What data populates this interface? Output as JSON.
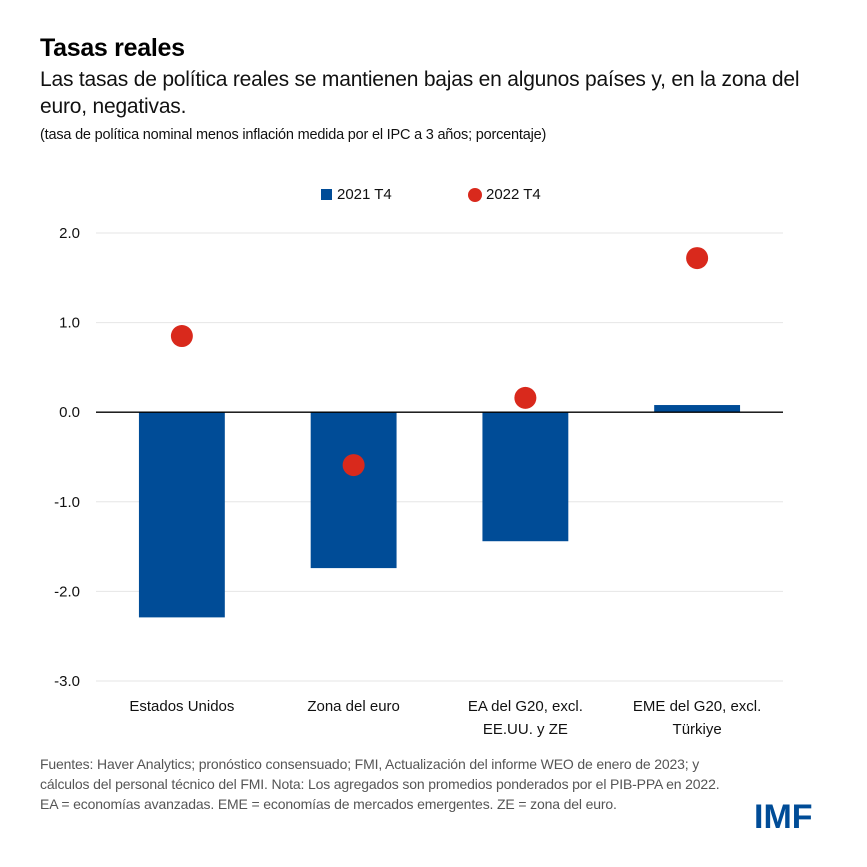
{
  "header": {
    "title": "Tasas reales",
    "subtitle": "Las tasas de política reales se mantienen bajas en algunos países y, en la zona del euro, negativas.",
    "units": "(tasa de política nominal menos inflación medida por el IPC a 3 años; porcentaje)"
  },
  "colors": {
    "bar": "#004C97",
    "dot": "#D9291C",
    "grid": "#E6E6E6",
    "axis": "#000000"
  },
  "chart_data": {
    "type": "bar",
    "title": "Tasas reales",
    "subtitle": "Las tasas de política reales se mantienen bajas en algunos países y, en la zona del euro, negativas.",
    "xlabel": "",
    "ylabel": "(tasa de política nominal menos inflación medida por el IPC a 3 años; porcentaje)",
    "categories": [
      [
        "Estados Unidos"
      ],
      [
        "Zona del euro"
      ],
      [
        "EA del G20, excl.",
        "EE.UU. y ZE"
      ],
      [
        "EME del G20, excl.",
        "Türkiye"
      ]
    ],
    "series": [
      {
        "name": "2021 T4",
        "kind": "bar",
        "values": [
          -2.29,
          -1.74,
          -1.44,
          0.08
        ]
      },
      {
        "name": "2022 T4",
        "kind": "dot",
        "values": [
          0.85,
          -0.59,
          0.16,
          1.72
        ]
      }
    ],
    "ylim": [
      -3.0,
      2.0
    ],
    "yticks": [
      2.0,
      1.0,
      0.0,
      -1.0,
      -2.0,
      -3.0
    ],
    "ytick_labels": [
      "2.0",
      "1.0",
      "0.0",
      "-1.0",
      "-2.0",
      "-3.0"
    ],
    "grid": true,
    "legend_position": "top-center"
  },
  "legend": {
    "items": [
      {
        "label": "2021 T4",
        "marker": "square"
      },
      {
        "label": "2022 T4",
        "marker": "circle"
      }
    ]
  },
  "footer": {
    "note": "Fuentes: Haver Analytics; pronóstico consensuado; FMI, Actualización del informe WEO de enero de 2023; y cálculos del personal técnico del FMI. Nota: Los agregados son promedios ponderados por el PIB-PPA en 2022. EA = economías avanzadas. EME = economías de mercados emergentes. ZE = zona del euro."
  },
  "logo": {
    "text": "IMF"
  }
}
